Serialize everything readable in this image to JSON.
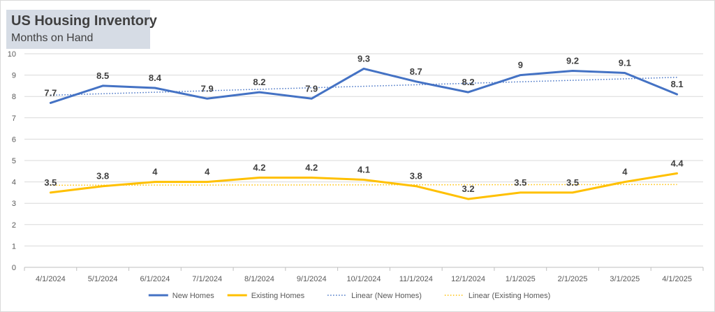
{
  "chart_data": {
    "type": "line",
    "title": "US Housing Inventory",
    "subtitle": "Months on Hand",
    "xlabel": "",
    "ylabel": "",
    "ylim": [
      0,
      10
    ],
    "yticks": [
      "0",
      "1",
      "2",
      "3",
      "4",
      "5",
      "6",
      "7",
      "8",
      "9",
      "10"
    ],
    "grid": true,
    "legend_position": "bottom",
    "categories": [
      "4/1/2024",
      "5/1/2024",
      "6/1/2024",
      "7/1/2024",
      "8/1/2024",
      "9/1/2024",
      "10/1/2024",
      "11/1/2024",
      "12/1/2024",
      "1/1/2025",
      "2/1/2025",
      "3/1/2025",
      "4/1/2025"
    ],
    "series": [
      {
        "name": "New Homes",
        "color": "#4472c4",
        "values": [
          7.7,
          8.5,
          8.4,
          7.9,
          8.2,
          7.9,
          9.3,
          8.7,
          8.2,
          9,
          9.2,
          9.1,
          8.1
        ],
        "labels": [
          "7.7",
          "8.5",
          "8.4",
          "7.9",
          "8.2",
          "7.9",
          "9.3",
          "8.7",
          "8.2",
          "9",
          "9.2",
          "9.1",
          "8.1"
        ]
      },
      {
        "name": "Existing Homes",
        "color": "#ffc000",
        "values": [
          3.5,
          3.8,
          4,
          4,
          4.2,
          4.2,
          4.1,
          3.8,
          3.2,
          3.5,
          3.5,
          4,
          4.4
        ],
        "labels": [
          "3.5",
          "3.8",
          "4",
          "4",
          "4.2",
          "4.2",
          "4.1",
          "3.8",
          "3.2",
          "3.5",
          "3.5",
          "4",
          "4.4"
        ]
      }
    ],
    "trendlines": [
      {
        "name": "Linear (New Homes)",
        "color": "#4472c4",
        "series_index": 0
      },
      {
        "name": "Linear (Existing Homes)",
        "color": "#ffc000",
        "series_index": 1
      }
    ]
  }
}
